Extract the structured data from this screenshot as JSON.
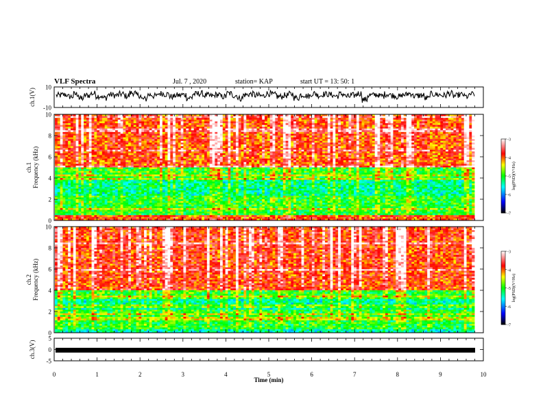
{
  "header": {
    "title": "VLF Spectra",
    "date": "Jul. 7 , 2020",
    "station": "station= KAP",
    "start": "start UT = 13: 50: 1"
  },
  "chart_data": [
    {
      "type": "line",
      "title": "",
      "ylabel": "ch.1(V)",
      "ylim": [
        -10,
        10
      ],
      "yticks": [
        "10",
        "-10"
      ],
      "xlim": [
        0,
        10
      ],
      "description_series": "waveform amplitude trace",
      "series": [
        {
          "values": [
            3,
            4,
            1,
            5,
            -2,
            3,
            6,
            2,
            -1,
            4,
            3,
            5,
            2,
            7,
            3,
            -3,
            4,
            2,
            6,
            5,
            1,
            3,
            4,
            -1,
            5,
            6,
            3,
            2,
            4,
            1,
            6,
            3,
            -2,
            4,
            5,
            3,
            2,
            6,
            4,
            1,
            3,
            5,
            -1,
            4,
            2,
            6,
            3,
            5,
            4,
            2,
            5,
            1,
            3,
            6,
            -4,
            3,
            4,
            2,
            5,
            3,
            1,
            4,
            6,
            2,
            3,
            -2,
            5,
            4,
            3,
            6,
            2,
            4,
            1,
            5
          ]
        }
      ],
      "color": "#000000"
    },
    {
      "type": "heatmap",
      "ylabel": "ch.1\nFrequency (kHz)",
      "ylim": [
        0,
        10
      ],
      "yticks": [
        "10",
        "8",
        "6",
        "4",
        "2",
        "0"
      ],
      "xlim": [
        0,
        10
      ],
      "colorbar": {
        "label": "log(PSD)(V²/Hz)",
        "ticks": [
          "-3",
          "-4",
          "-5",
          "-6",
          "-7"
        ],
        "range": [
          -7,
          -3
        ],
        "colors": [
          "#000000",
          "#0000ff",
          "#00ffff",
          "#00ff00",
          "#ffff00",
          "#ff0000",
          "#ffffff"
        ]
      }
    },
    {
      "type": "heatmap",
      "ylabel": "ch.2\nFrequency (kHz)",
      "ylim": [
        0,
        10
      ],
      "yticks": [
        "10",
        "8",
        "6",
        "4",
        "2",
        "0"
      ],
      "xlim": [
        0,
        10
      ],
      "colorbar": {
        "label": "log(PSD)(V²/Hz)",
        "ticks": [
          "-3",
          "-4",
          "-5",
          "-6",
          "-7"
        ],
        "range": [
          -7,
          -3
        ],
        "colors": [
          "#000000",
          "#0000ff",
          "#00ffff",
          "#00ff00",
          "#ffff00",
          "#ff0000",
          "#ffffff"
        ]
      }
    },
    {
      "type": "line",
      "ylabel": "ch.3(V)",
      "ylim": [
        -5,
        5
      ],
      "yticks": [
        "5",
        "0",
        "-5"
      ],
      "xlim": [
        0,
        10
      ],
      "series": [
        {
          "values": [
            -0.3,
            -0.3
          ]
        }
      ],
      "color": "#000000"
    }
  ],
  "xaxis": {
    "label": "Time (min)",
    "ticks": [
      "0",
      "1",
      "2",
      "3",
      "4",
      "5",
      "6",
      "7",
      "8",
      "9",
      "10"
    ]
  }
}
